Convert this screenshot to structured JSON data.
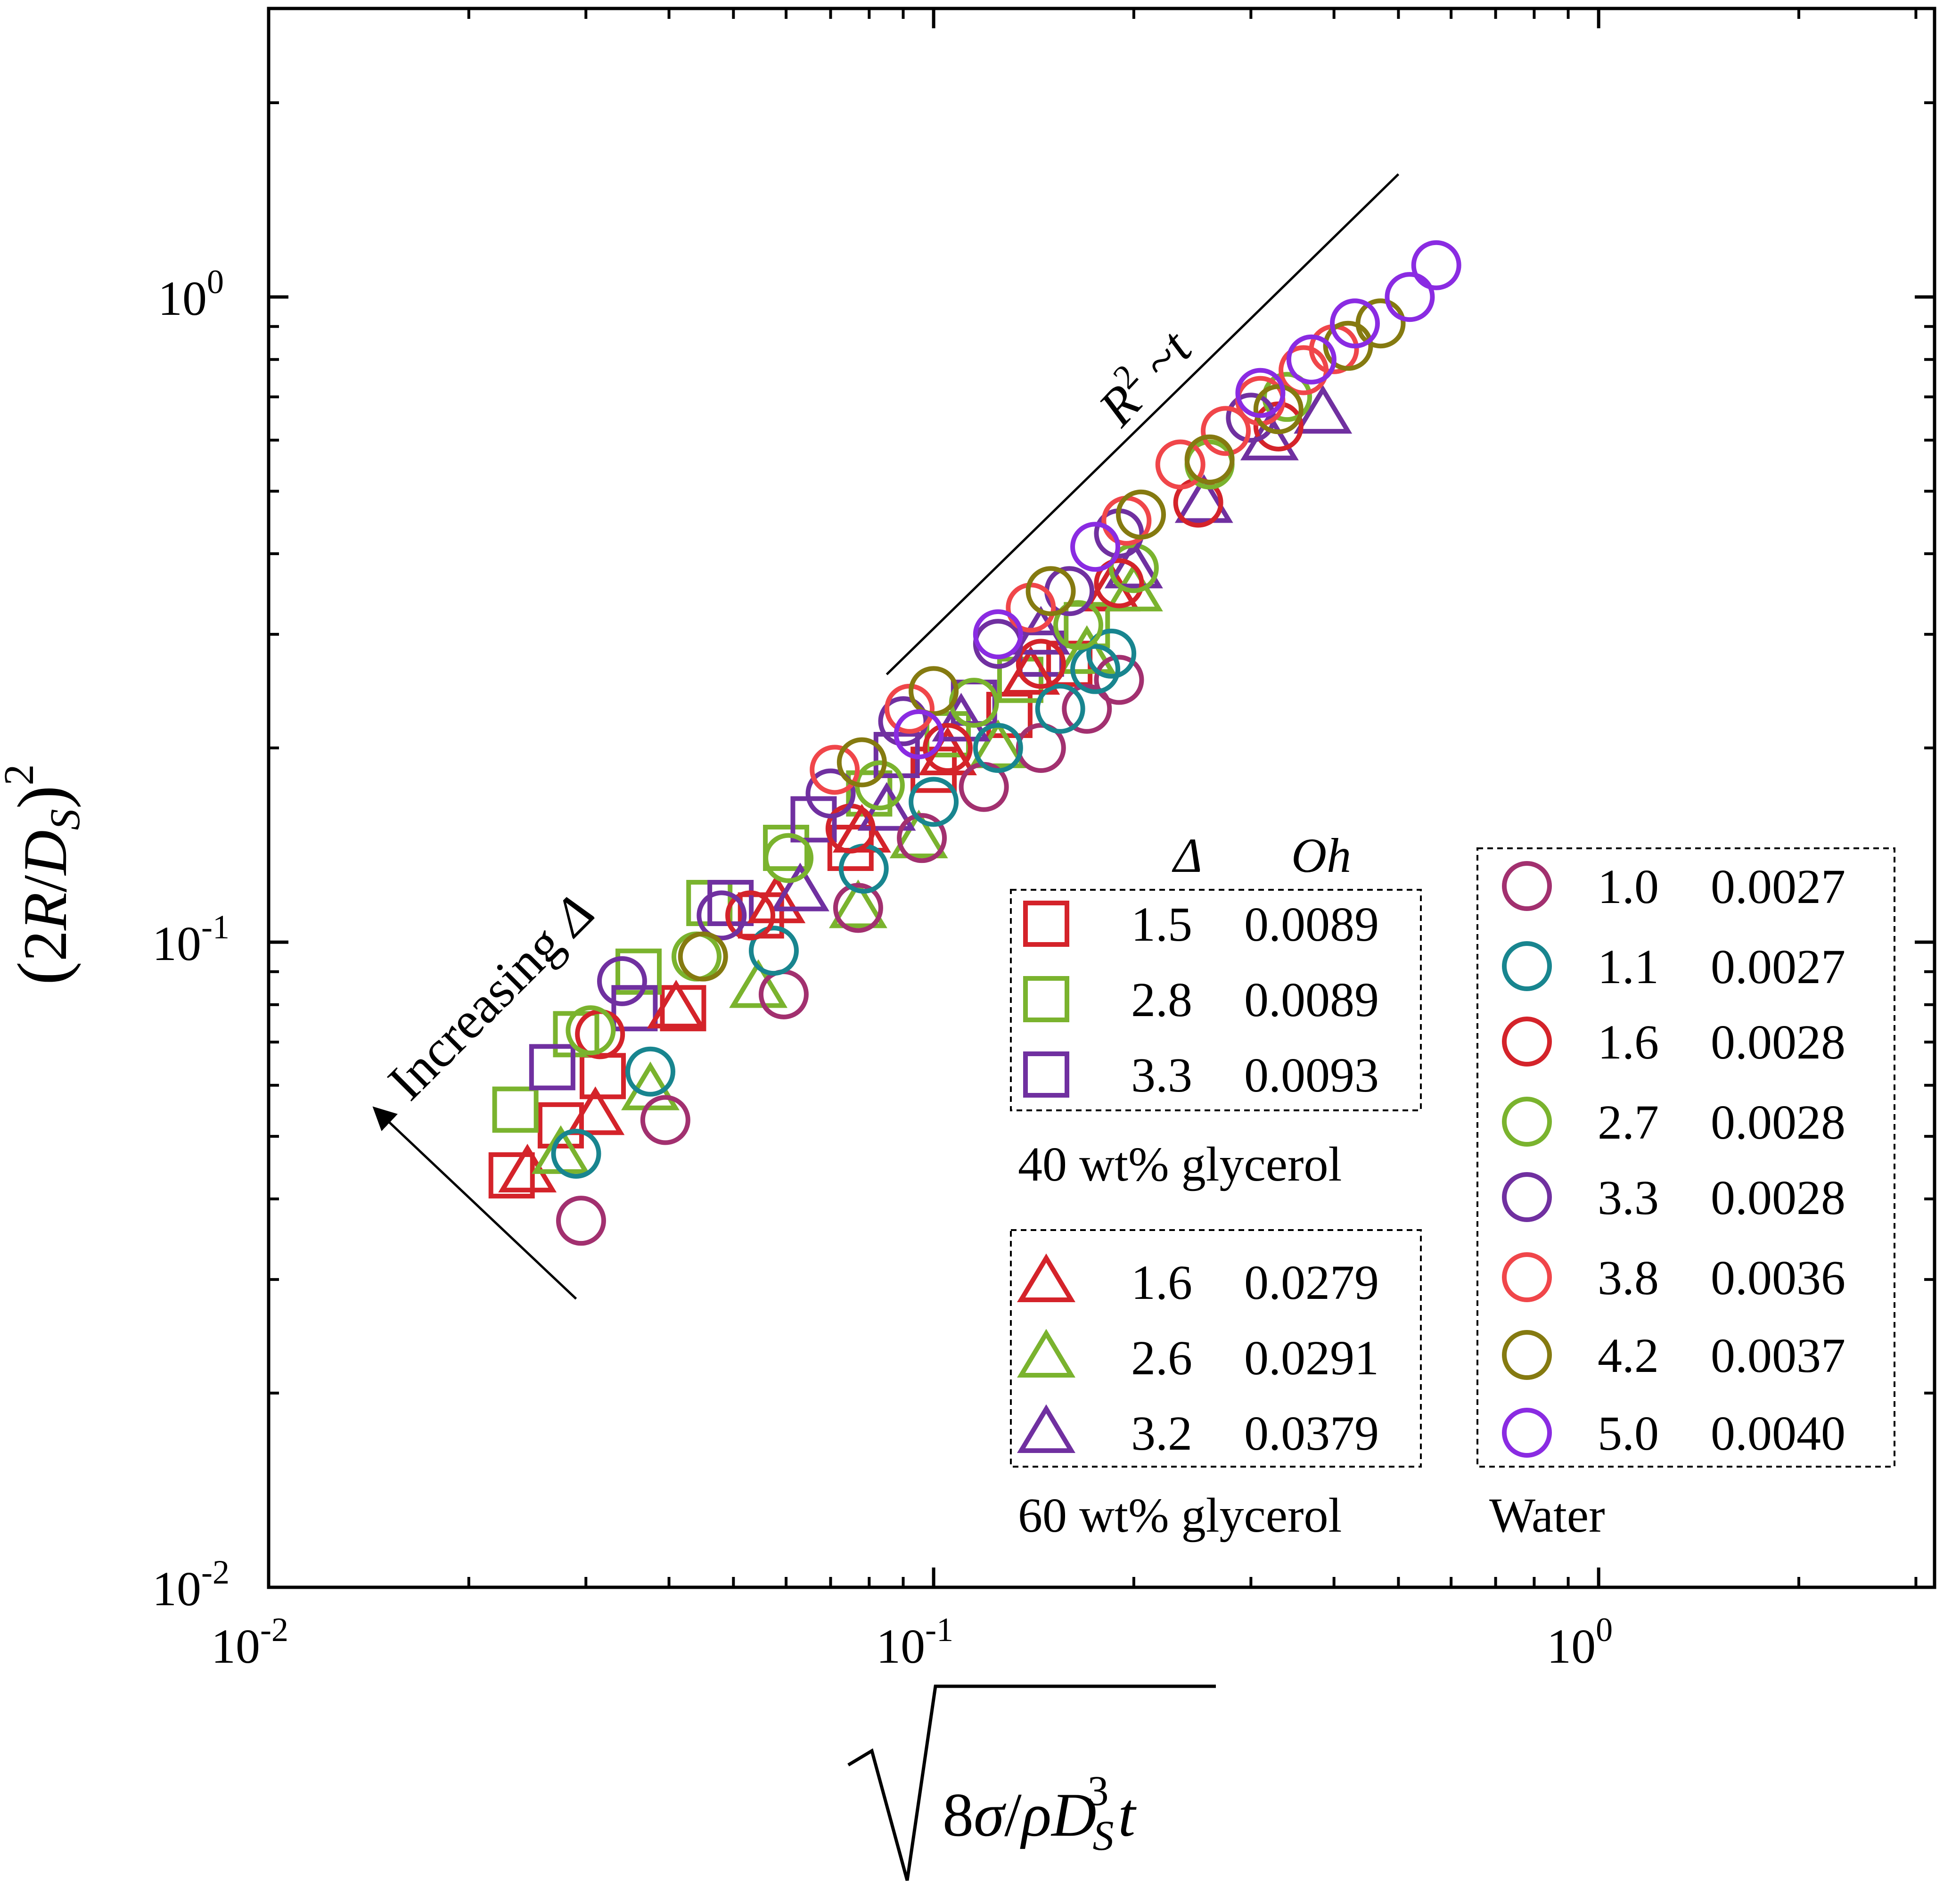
{
  "chart_data": {
    "type": "scatter",
    "xscale": "log",
    "yscale": "log",
    "xlim": [
      0.01,
      3.2
    ],
    "ylim": [
      0.01,
      2.8
    ],
    "grid": false,
    "x_tick_labels": [
      {
        "value": 0.01,
        "base": "10",
        "exp": "-2"
      },
      {
        "value": 0.1,
        "base": "10",
        "exp": "-1"
      },
      {
        "value": 1,
        "base": "10",
        "exp": "0"
      }
    ],
    "y_tick_labels": [
      {
        "value": 0.01,
        "base": "10",
        "exp": "-2"
      },
      {
        "value": 0.1,
        "base": "10",
        "exp": "-1"
      },
      {
        "value": 1,
        "base": "10",
        "exp": "0"
      }
    ],
    "ylabel": "(2R/D_S)^2",
    "xlabel": "sqrt(8σ/ρD_S^3 t)",
    "annotations": {
      "slope_label": {
        "R": "R",
        "sup": "2",
        "rest": " ~",
        "t": "t"
      },
      "slope_line": {
        "x": [
          0.085,
          0.5
        ],
        "y": [
          0.26,
          1.55
        ]
      },
      "arrow_label": {
        "text": "Increasing ",
        "delta": "Δ"
      },
      "arrow": {
        "from": [
          0.029,
          0.028
        ],
        "to": [
          0.0145,
          0.055
        ]
      }
    },
    "legend": {
      "header_delta": "Δ",
      "header_oh": "Oh",
      "groups": [
        {
          "caption": "40 wt% glycerol",
          "marker": "square",
          "entries": [
            0,
            1,
            2
          ]
        },
        {
          "caption": "60 wt% glycerol",
          "marker": "triangle",
          "entries": [
            3,
            4,
            5
          ]
        },
        {
          "caption": "Water",
          "marker": "circle",
          "entries": [
            6,
            7,
            8,
            9,
            10,
            11,
            12,
            13
          ]
        }
      ]
    },
    "series": [
      {
        "name": "1.5 0.0089",
        "delta": "1.5",
        "oh": "0.0089",
        "marker": "square",
        "color": "#d4232a",
        "points": [
          [
            0.0232,
            0.0435
          ],
          [
            0.0275,
            0.052
          ],
          [
            0.0318,
            0.062
          ],
          [
            0.042,
            0.079
          ],
          [
            0.055,
            0.11
          ],
          [
            0.075,
            0.14
          ],
          [
            0.1,
            0.185
          ],
          [
            0.13,
            0.225
          ],
          [
            0.16,
            0.27
          ]
        ]
      },
      {
        "name": "2.8 0.0089",
        "delta": "2.8",
        "oh": "0.0089",
        "marker": "square",
        "color": "#7ab32e",
        "points": [
          [
            0.0235,
            0.055
          ],
          [
            0.029,
            0.072
          ],
          [
            0.036,
            0.09
          ],
          [
            0.046,
            0.115
          ],
          [
            0.06,
            0.14
          ],
          [
            0.08,
            0.17
          ],
          [
            0.105,
            0.21
          ],
          [
            0.135,
            0.255
          ],
          [
            0.17,
            0.31
          ]
        ]
      },
      {
        "name": "3.3 0.0093",
        "delta": "3.3",
        "oh": "0.0093",
        "marker": "square",
        "color": "#7030a0",
        "points": [
          [
            0.0267,
            0.064
          ],
          [
            0.0355,
            0.079
          ],
          [
            0.0495,
            0.115
          ],
          [
            0.066,
            0.155
          ],
          [
            0.088,
            0.195
          ],
          [
            0.115,
            0.235
          ],
          [
            0.145,
            0.28
          ]
        ]
      },
      {
        "name": "1.6 0.0279",
        "delta": "1.6",
        "oh": "0.0279",
        "marker": "triangle",
        "color": "#d4232a",
        "points": [
          [
            0.0245,
            0.044
          ],
          [
            0.031,
            0.054
          ],
          [
            0.041,
            0.079
          ],
          [
            0.058,
            0.115
          ],
          [
            0.078,
            0.148
          ],
          [
            0.105,
            0.195
          ],
          [
            0.14,
            0.26
          ],
          [
            0.185,
            0.35
          ]
        ]
      },
      {
        "name": "2.6 0.0291",
        "delta": "2.6",
        "oh": "0.0291",
        "marker": "triangle",
        "color": "#7ab32e",
        "points": [
          [
            0.0275,
            0.047
          ],
          [
            0.0375,
            0.059
          ],
          [
            0.0545,
            0.085
          ],
          [
            0.077,
            0.113
          ],
          [
            0.095,
            0.145
          ],
          [
            0.125,
            0.2
          ],
          [
            0.17,
            0.28
          ],
          [
            0.2,
            0.35
          ]
        ]
      },
      {
        "name": "3.2 0.0379",
        "delta": "3.2",
        "oh": "0.0379",
        "marker": "triangle",
        "color": "#7030a0",
        "points": [
          [
            0.063,
            0.12
          ],
          [
            0.085,
            0.16
          ],
          [
            0.11,
            0.22
          ],
          [
            0.145,
            0.3
          ],
          [
            0.2,
            0.38
          ],
          [
            0.255,
            0.48
          ],
          [
            0.32,
            0.6
          ],
          [
            0.385,
            0.66
          ]
        ]
      },
      {
        "name": "1.0 0.0027",
        "delta": "1.0",
        "oh": "0.0027",
        "marker": "circle",
        "color": "#a2306f",
        "points": [
          [
            0.0295,
            0.037
          ],
          [
            0.0395,
            0.053
          ],
          [
            0.0595,
            0.083
          ],
          [
            0.077,
            0.113
          ],
          [
            0.096,
            0.145
          ],
          [
            0.119,
            0.174
          ],
          [
            0.145,
            0.2
          ],
          [
            0.17,
            0.23
          ],
          [
            0.19,
            0.255
          ]
        ]
      },
      {
        "name": "1.1 0.0027",
        "delta": "1.1",
        "oh": "0.0027",
        "marker": "circle",
        "color": "#18858f",
        "points": [
          [
            0.029,
            0.047
          ],
          [
            0.0375,
            0.063
          ],
          [
            0.0575,
            0.097
          ],
          [
            0.0785,
            0.13
          ],
          [
            0.1,
            0.165
          ],
          [
            0.125,
            0.2
          ],
          [
            0.155,
            0.23
          ],
          [
            0.175,
            0.265
          ],
          [
            0.185,
            0.28
          ]
        ]
      },
      {
        "name": "1.6 0.0028",
        "delta": "1.6",
        "oh": "0.0028",
        "marker": "circle",
        "color": "#d4232a",
        "points": [
          [
            0.0315,
            0.072
          ],
          [
            0.053,
            0.11
          ],
          [
            0.075,
            0.15
          ],
          [
            0.105,
            0.2
          ],
          [
            0.145,
            0.27
          ],
          [
            0.19,
            0.36
          ],
          [
            0.25,
            0.48
          ],
          [
            0.33,
            0.63
          ]
        ]
      },
      {
        "name": "2.7 0.0028",
        "delta": "2.7",
        "oh": "0.0028",
        "marker": "circle",
        "color": "#7ab32e",
        "points": [
          [
            0.0305,
            0.073
          ],
          [
            0.044,
            0.095
          ],
          [
            0.0605,
            0.135
          ],
          [
            0.083,
            0.175
          ],
          [
            0.115,
            0.235
          ],
          [
            0.165,
            0.31
          ],
          [
            0.2,
            0.38
          ],
          [
            0.26,
            0.55
          ],
          [
            0.34,
            0.7
          ]
        ]
      },
      {
        "name": "3.3 0.0028",
        "delta": "3.3",
        "oh": "0.0028",
        "marker": "circle",
        "color": "#7030a0",
        "points": [
          [
            0.034,
            0.087
          ],
          [
            0.048,
            0.11
          ],
          [
            0.07,
            0.17
          ],
          [
            0.09,
            0.22
          ],
          [
            0.125,
            0.29
          ],
          [
            0.16,
            0.35
          ],
          [
            0.19,
            0.43
          ],
          [
            0.3,
            0.65
          ]
        ]
      },
      {
        "name": "3.8 0.0036",
        "delta": "3.8",
        "oh": "0.0036",
        "marker": "circle",
        "color": "#f0464a",
        "points": [
          [
            0.071,
            0.185
          ],
          [
            0.092,
            0.23
          ],
          [
            0.14,
            0.33
          ],
          [
            0.195,
            0.45
          ],
          [
            0.235,
            0.55
          ],
          [
            0.275,
            0.62
          ],
          [
            0.31,
            0.69
          ],
          [
            0.36,
            0.77
          ],
          [
            0.4,
            0.83
          ]
        ]
      },
      {
        "name": "4.2 0.0037",
        "delta": "4.2",
        "oh": "0.0037",
        "marker": "circle",
        "color": "#857a10",
        "points": [
          [
            0.045,
            0.095
          ],
          [
            0.078,
            0.19
          ],
          [
            0.1,
            0.245
          ],
          [
            0.15,
            0.35
          ],
          [
            0.205,
            0.46
          ],
          [
            0.26,
            0.56
          ],
          [
            0.33,
            0.67
          ],
          [
            0.42,
            0.84
          ],
          [
            0.47,
            0.91
          ]
        ]
      },
      {
        "name": "5.0 0.0040",
        "delta": "5.0",
        "oh": "0.0040",
        "marker": "circle",
        "color": "#8a2be2",
        "points": [
          [
            0.095,
            0.21
          ],
          [
            0.125,
            0.3
          ],
          [
            0.175,
            0.41
          ],
          [
            0.31,
            0.71
          ],
          [
            0.37,
            0.8
          ],
          [
            0.43,
            0.91
          ],
          [
            0.52,
            1.0
          ],
          [
            0.57,
            1.12
          ]
        ]
      }
    ]
  }
}
